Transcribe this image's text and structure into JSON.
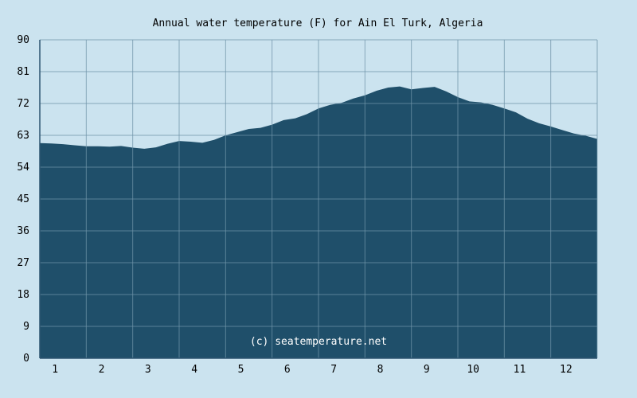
{
  "chart_data": {
    "type": "area",
    "title": "Annual water temperature (F) for Ain El Turk, Algeria",
    "watermark": "(c) seatemperature.net",
    "xlabel": "",
    "ylabel": "",
    "x_ticks": [
      "1",
      "2",
      "3",
      "4",
      "5",
      "6",
      "7",
      "8",
      "9",
      "10",
      "11",
      "12"
    ],
    "y_ticks": [
      "0",
      "9",
      "18",
      "27",
      "36",
      "45",
      "54",
      "63",
      "72",
      "81",
      "90"
    ],
    "ylim": [
      0,
      90
    ],
    "xlim": [
      0.5,
      12.5
    ],
    "grid": true,
    "colors": {
      "background": "#cbe3ef",
      "fill": "#1f4f6a",
      "grid": "#6f93a8"
    },
    "x": [
      0.5,
      0.75,
      1.0,
      1.25,
      1.5,
      1.75,
      2.0,
      2.25,
      2.5,
      2.75,
      3.0,
      3.25,
      3.5,
      3.75,
      4.0,
      4.25,
      4.5,
      4.75,
      5.0,
      5.25,
      5.5,
      5.75,
      6.0,
      6.25,
      6.5,
      6.75,
      7.0,
      7.25,
      7.5,
      7.75,
      8.0,
      8.25,
      8.5,
      8.75,
      9.0,
      9.25,
      9.5,
      9.75,
      10.0,
      10.25,
      10.5,
      10.75,
      11.0,
      11.25,
      11.5,
      11.75,
      12.0,
      12.25,
      12.5
    ],
    "values": [
      60.8,
      60.7,
      60.5,
      60.2,
      59.9,
      59.9,
      59.8,
      60.0,
      59.5,
      59.2,
      59.6,
      60.6,
      61.4,
      61.2,
      60.9,
      61.7,
      63.0,
      63.9,
      64.8,
      65.1,
      66.0,
      67.3,
      67.8,
      69.0,
      70.6,
      71.6,
      72.2,
      73.4,
      74.3,
      75.6,
      76.5,
      76.8,
      76.0,
      76.4,
      76.7,
      75.4,
      73.8,
      72.6,
      72.3,
      71.6,
      70.6,
      69.5,
      67.7,
      66.4,
      65.5,
      64.5,
      63.5,
      62.9,
      62.0
    ]
  }
}
